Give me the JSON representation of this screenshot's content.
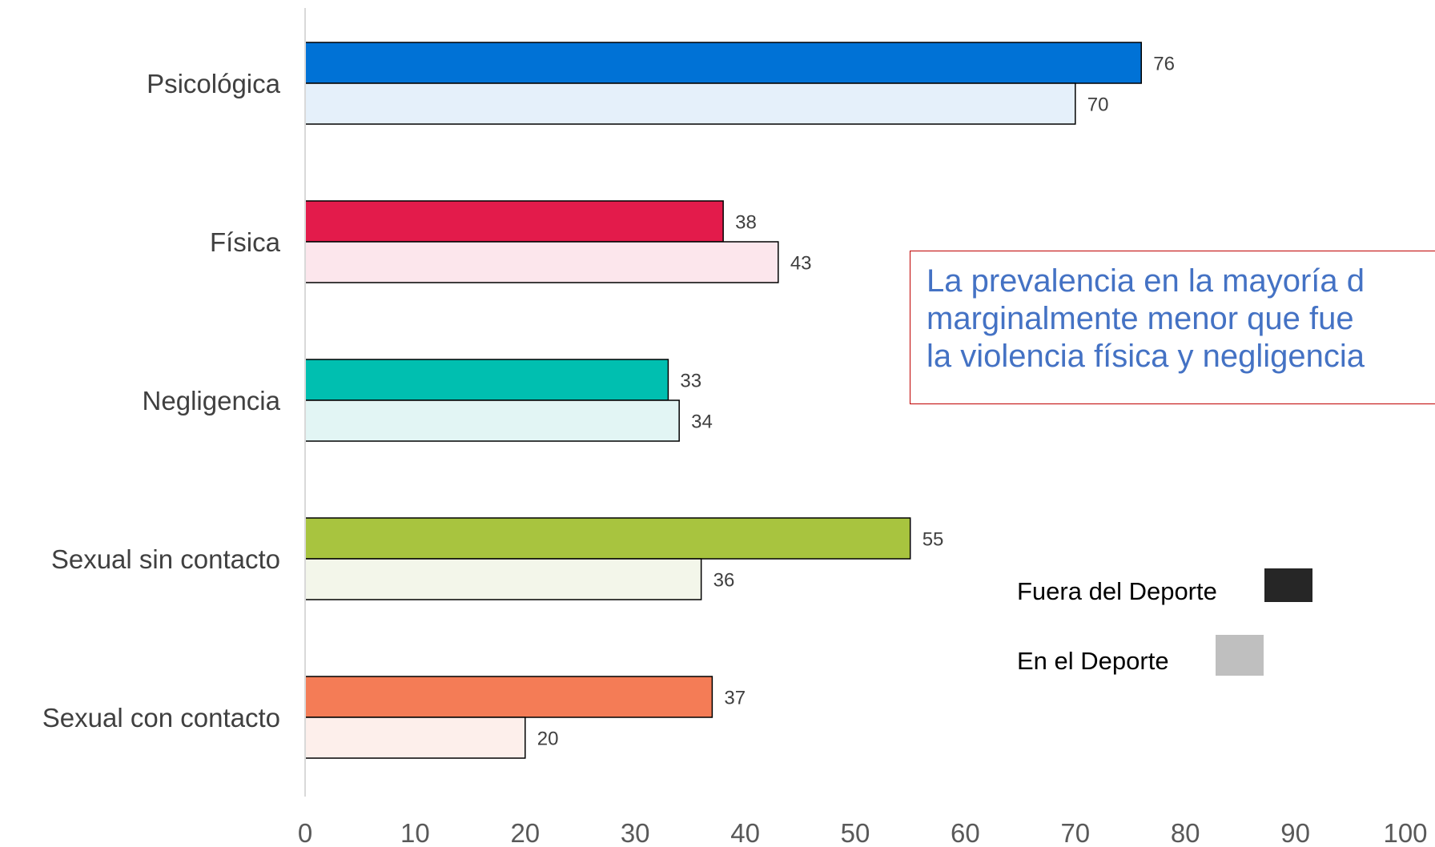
{
  "chart_data": {
    "type": "bar",
    "orientation": "horizontal",
    "categories": [
      "Psicológica",
      "Física",
      "Negligencia",
      "Sexual sin contacto",
      "Sexual con contacto"
    ],
    "series": [
      {
        "name": "Fuera del Deporte",
        "values": [
          76,
          38,
          33,
          55,
          37
        ],
        "colors": [
          "#0072d6",
          "#e31b4b",
          "#00bfb0",
          "#a8c43f",
          "#f47c56"
        ]
      },
      {
        "name": "En el Deporte",
        "values": [
          70,
          43,
          34,
          36,
          20
        ],
        "colors": [
          "#e5f0fa",
          "#fce6ec",
          "#e2f5f4",
          "#f3f6ea",
          "#fdefeb"
        ]
      }
    ],
    "xlim": [
      0,
      100
    ],
    "xticks": [
      "0",
      "10",
      "20",
      "30",
      "40",
      "50",
      "60",
      "70",
      "80",
      "90",
      "100"
    ],
    "legend": {
      "position": "right",
      "items": [
        {
          "label": "Fuera del Deporte",
          "swatch": "#262626"
        },
        {
          "label": "En el Deporte",
          "swatch": "#bfbfbf"
        }
      ]
    },
    "grid": false
  },
  "callout": {
    "lines": [
      "La prevalencia en la mayoría d",
      "marginalmente menor que fue",
      "la violencia física y negligencia"
    ]
  }
}
